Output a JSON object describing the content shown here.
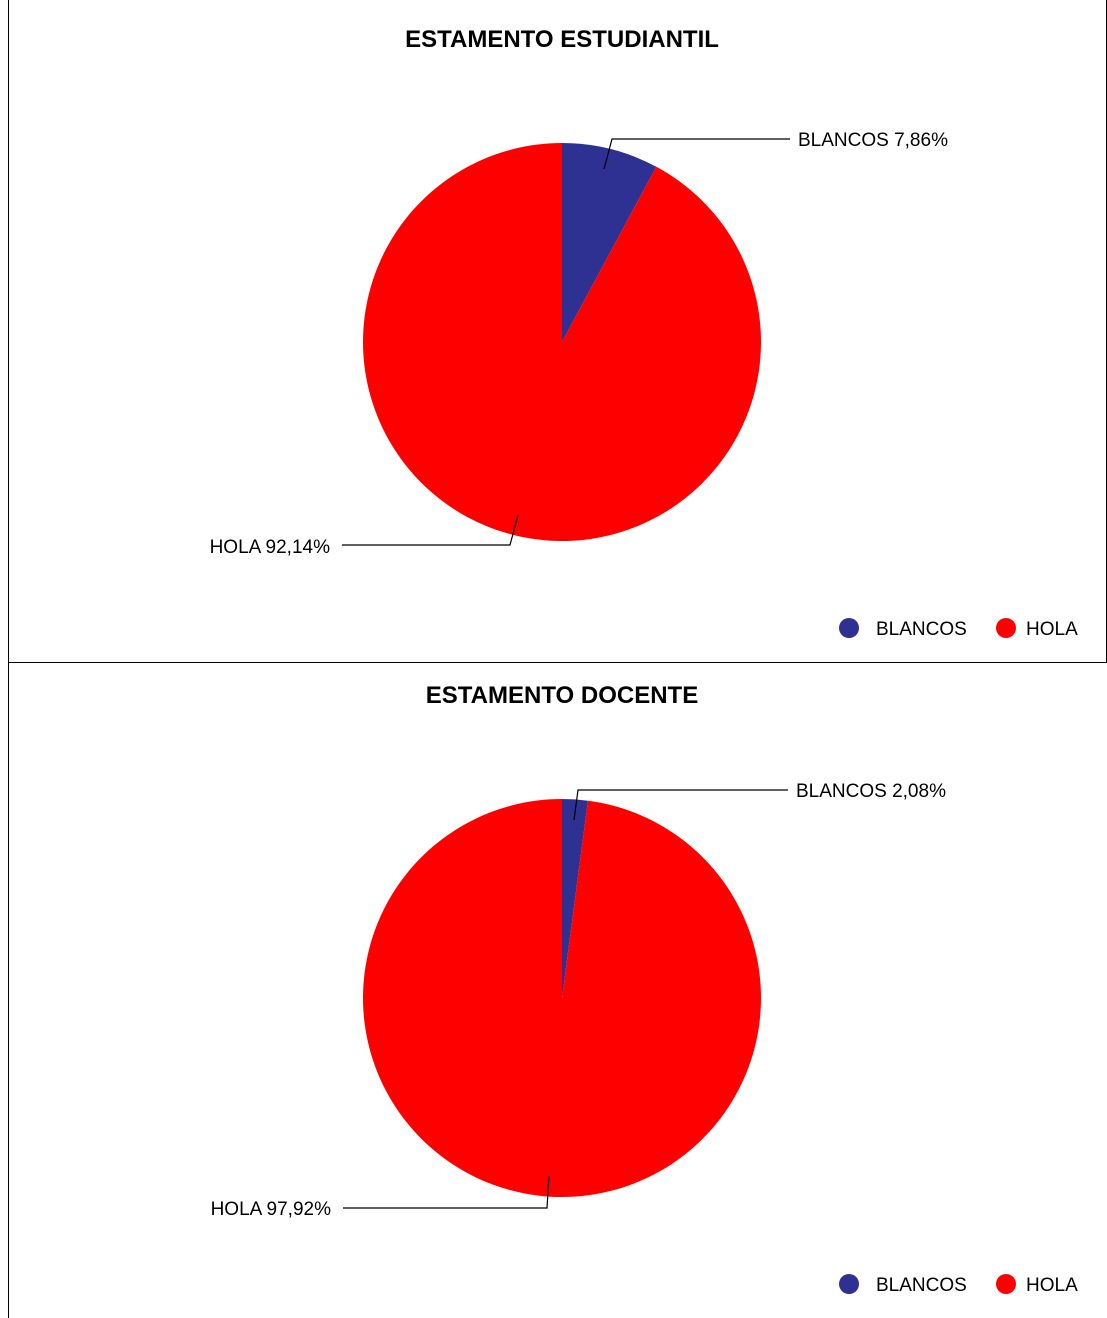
{
  "chart_data": [
    {
      "type": "pie",
      "title": "ESTAMENTO ESTUDIANTIL",
      "legend": "bottom-right",
      "categories": [
        "BLANCOS",
        "HOLA"
      ],
      "values": [
        7.86,
        92.14
      ],
      "colors": [
        "#2f3192",
        "#ff0000"
      ],
      "data_labels": [
        "BLANCOS 7,86%",
        "HOLA 92,14%"
      ]
    },
    {
      "type": "pie",
      "title": "ESTAMENTO DOCENTE",
      "legend": "bottom-right",
      "categories": [
        "BLANCOS",
        "HOLA"
      ],
      "values": [
        2.08,
        97.92
      ],
      "colors": [
        "#2f3192",
        "#ff0000"
      ],
      "data_labels": [
        "BLANCOS 2,08%",
        "HOLA 97,92%"
      ]
    }
  ]
}
